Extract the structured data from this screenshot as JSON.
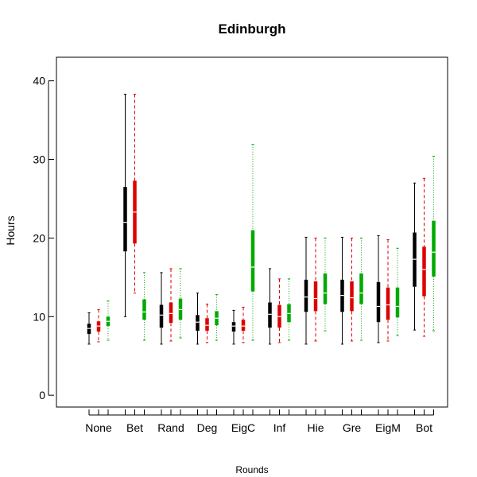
{
  "chart_data": {
    "type": "box",
    "title": "Edinburgh",
    "xlabel": "Rounds",
    "ylabel": "Hours",
    "ylim": [
      -1.5,
      43
    ],
    "yticks": [
      0,
      10,
      20,
      30,
      40
    ],
    "categories": [
      "None",
      "Bet",
      "Rand",
      "Deg",
      "EigC",
      "Inf",
      "Hie",
      "Gre",
      "EigM",
      "Bot"
    ],
    "series": [
      {
        "color": "#000000",
        "whisker_style": "solid",
        "boxes": [
          [
            6.5,
            7.8,
            8.5,
            9.1,
            10.5
          ],
          [
            10.0,
            18.3,
            22.0,
            26.5,
            38.3
          ],
          [
            6.5,
            8.6,
            10.2,
            11.5,
            15.6
          ],
          [
            6.5,
            8.2,
            9.3,
            10.2,
            13.0
          ],
          [
            6.5,
            8.1,
            8.8,
            9.3,
            10.8
          ],
          [
            6.5,
            8.6,
            10.3,
            11.8,
            16.1
          ],
          [
            6.5,
            10.6,
            12.5,
            14.7,
            20.1
          ],
          [
            6.5,
            10.6,
            12.7,
            14.7,
            20.1
          ],
          [
            6.7,
            9.3,
            11.3,
            14.4,
            20.3
          ],
          [
            8.3,
            13.8,
            17.3,
            20.7,
            27.0
          ]
        ]
      },
      {
        "color": "#dd0000",
        "whisker_style": "dashed",
        "boxes": [
          [
            6.8,
            8.1,
            8.8,
            9.4,
            10.9
          ],
          [
            13.0,
            19.3,
            23.3,
            27.3,
            38.3
          ],
          [
            6.9,
            9.2,
            10.4,
            11.8,
            16.1
          ],
          [
            6.7,
            8.2,
            8.9,
            9.8,
            11.6
          ],
          [
            6.7,
            8.2,
            8.8,
            9.6,
            11.2
          ],
          [
            6.7,
            8.6,
            10.0,
            11.5,
            14.8
          ],
          [
            6.9,
            10.7,
            12.3,
            14.5,
            20.0
          ],
          [
            6.9,
            10.7,
            12.4,
            14.5,
            20.0
          ],
          [
            6.9,
            9.6,
            11.5,
            13.7,
            19.8
          ],
          [
            7.5,
            12.6,
            16.0,
            18.9,
            27.6
          ]
        ]
      },
      {
        "color": "#00aa00",
        "whisker_style": "dotted",
        "boxes": [
          [
            7.0,
            8.8,
            9.4,
            10.0,
            12.0
          ],
          [
            7.0,
            9.6,
            10.6,
            12.2,
            15.6
          ],
          [
            7.3,
            9.6,
            10.9,
            12.3,
            16.1
          ],
          [
            7.0,
            8.9,
            9.8,
            10.7,
            12.8
          ],
          [
            7.0,
            13.2,
            16.3,
            21.0,
            31.9
          ],
          [
            7.0,
            9.3,
            10.4,
            11.6,
            14.8
          ],
          [
            8.2,
            11.6,
            13.0,
            15.5,
            20.0
          ],
          [
            7.0,
            11.6,
            13.0,
            15.5,
            20.0
          ],
          [
            7.6,
            9.9,
            11.3,
            13.7,
            18.7
          ],
          [
            8.2,
            15.1,
            18.2,
            22.2,
            30.4
          ]
        ]
      }
    ]
  }
}
